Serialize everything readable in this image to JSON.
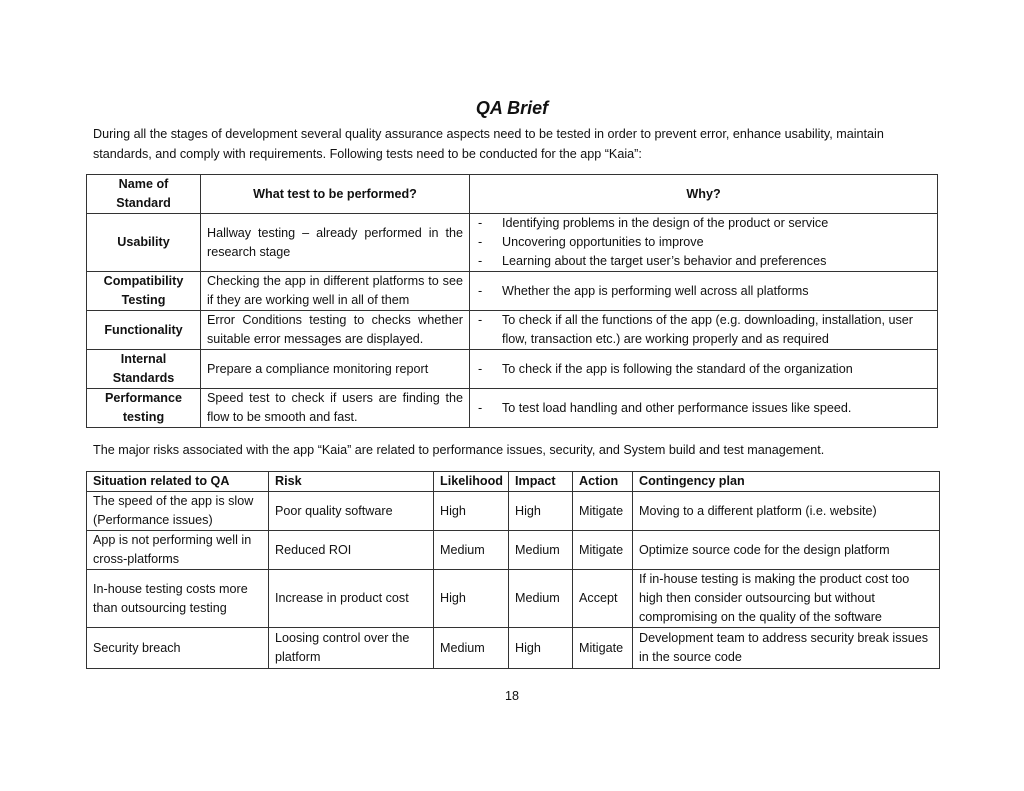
{
  "title": "QA Brief",
  "intro": "During all the stages of development several quality assurance aspects need to be tested in order to prevent error, enhance usability, maintain standards, and comply with requirements. Following tests need to be conducted for the app “Kaia”:",
  "standards_table": {
    "headers": [
      "Name of Standard",
      "What test to be performed?",
      "Why?"
    ],
    "rows": [
      {
        "standard": "Usability",
        "what": "Hallway testing – already performed in the research stage",
        "why": [
          "Identifying problems in the design of the product or service",
          "Uncovering opportunities to improve",
          "Learning about the target user’s behavior and preferences"
        ]
      },
      {
        "standard": "Compatibility Testing",
        "what": "Checking the app in different platforms to see if they are working well in all of them",
        "why": [
          "Whether the app is performing well across all platforms"
        ]
      },
      {
        "standard": "Functionality",
        "what": "Error Conditions testing to checks whether suitable error messages are displayed.",
        "why": [
          "To check if all the functions of the app (e.g. downloading, installation, user flow, transaction etc.) are working properly and as required"
        ]
      },
      {
        "standard": "Internal Standards",
        "what": "Prepare a compliance monitoring report",
        "why": [
          "To check if the app is following the standard of the organization"
        ]
      },
      {
        "standard": "Performance testing",
        "what": "Speed test to check if users are finding the flow to be smooth and fast.",
        "why": [
          "To test load handling and other performance issues like speed."
        ]
      }
    ]
  },
  "risk_intro": "The major risks associated with the app “Kaia” are related to performance issues, security, and System build and test management.",
  "risk_table": {
    "headers": [
      "Situation related to QA",
      "Risk",
      "Likelihood",
      "Impact",
      "Action",
      "Contingency plan"
    ],
    "rows": [
      [
        "The speed of the app is slow (Performance issues)",
        "Poor quality software",
        "High",
        "High",
        "Mitigate",
        "Moving to a different platform (i.e. website)"
      ],
      [
        "App is not performing well in cross-platforms",
        "Reduced ROI",
        "Medium",
        "Medium",
        "Mitigate",
        "Optimize source code for the design platform"
      ],
      [
        "In-house testing costs more than outsourcing testing",
        "Increase in product cost",
        "High",
        "Medium",
        "Accept",
        "If in-house testing is making the product cost too high then consider outsourcing but without compromising on the quality of the software"
      ],
      [
        "Security breach",
        "Loosing control over the platform",
        "Medium",
        "High",
        "Mitigate",
        "Development team to address security break issues in the source code"
      ]
    ]
  },
  "page_number": "18"
}
